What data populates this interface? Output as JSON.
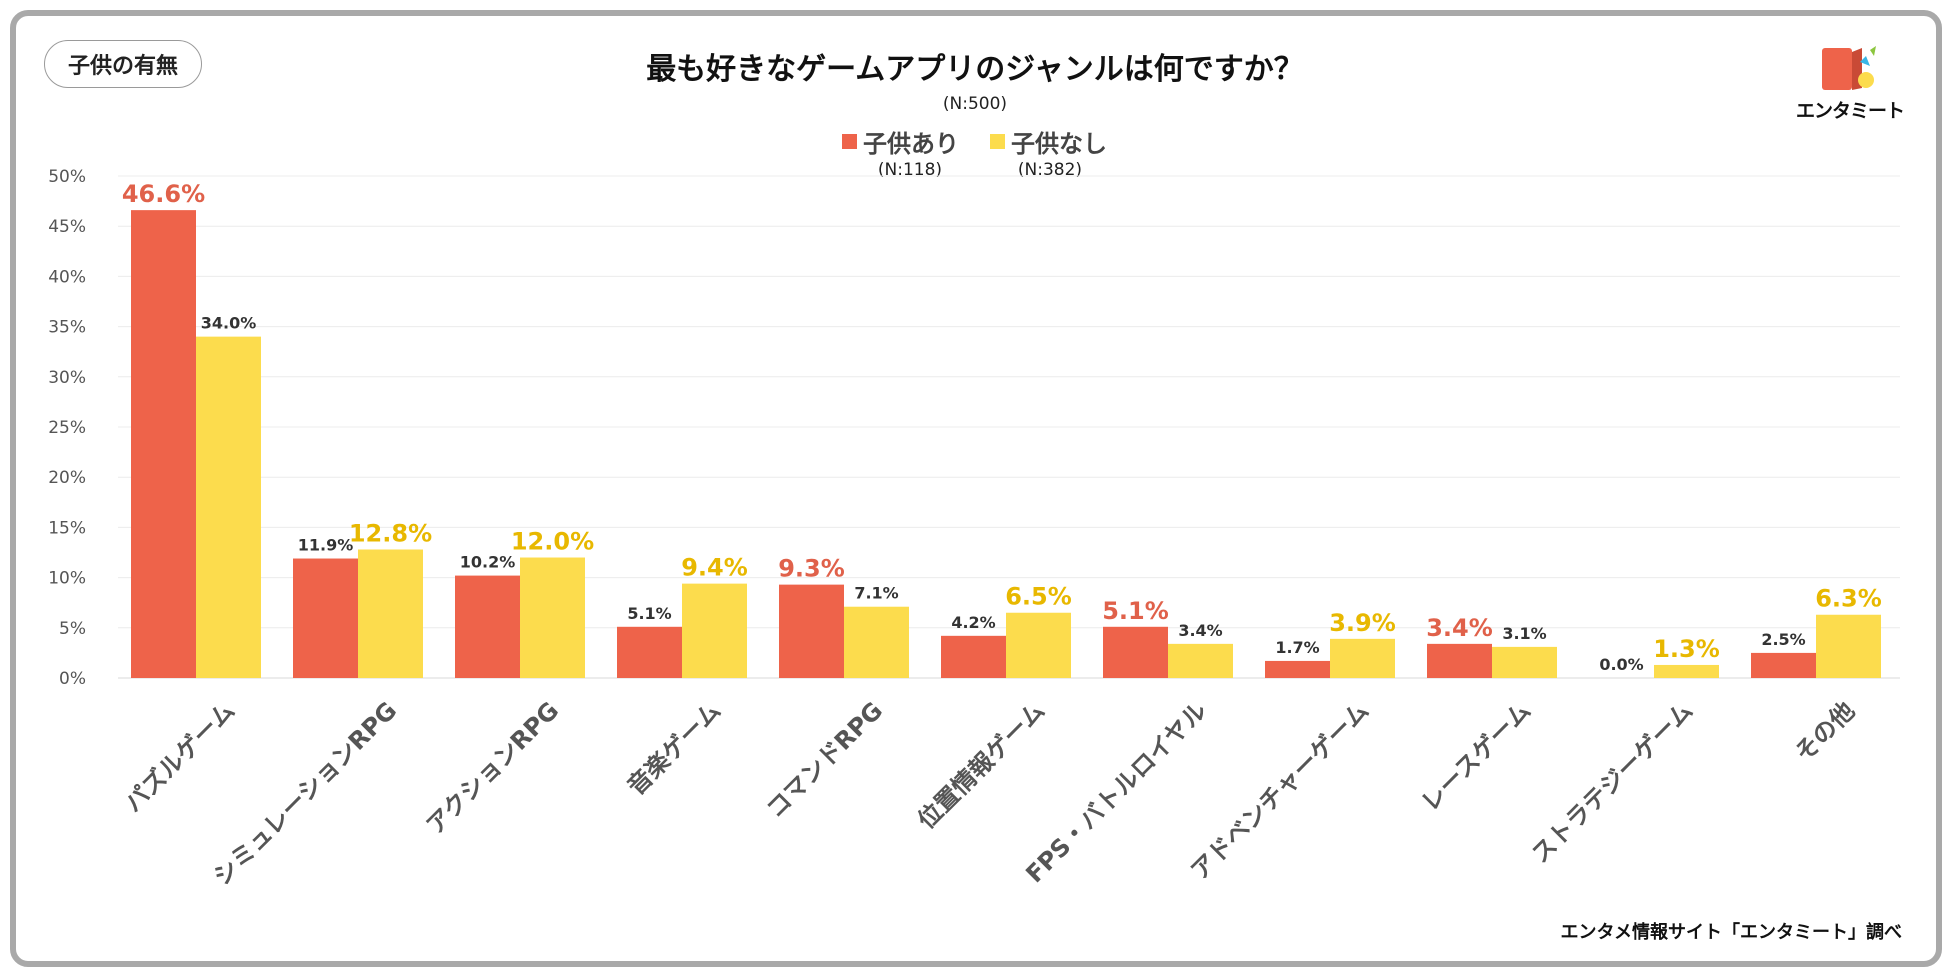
{
  "badge": "子供の有無",
  "logo_text": "エンタミート",
  "source": "エンタメ情報サイト「エンタミート」調べ",
  "colors": {
    "series_a": "#ee634a",
    "series_b": "#fcdc4d",
    "label_a_highlight": "#e0614a",
    "label_b_highlight": "#e8b800"
  },
  "legend": [
    {
      "name": "子供あり",
      "n": "(N:118)"
    },
    {
      "name": "子供なし",
      "n": "(N:382)"
    }
  ],
  "chart_data": {
    "type": "bar",
    "title": "最も好きなゲームアプリのジャンルは何ですか？",
    "subtitle": "(N:500)",
    "xlabel": "",
    "ylabel": "",
    "ylim": [
      0,
      50
    ],
    "yticks": [
      "0%",
      "5%",
      "10%",
      "15%",
      "20%",
      "25%",
      "30%",
      "35%",
      "40%",
      "45%",
      "50%"
    ],
    "categories": [
      "パズルゲーム",
      "シミュレーションRPG",
      "アクションRPG",
      "音楽ゲーム",
      "コマンドRPG",
      "位置情報ゲーム",
      "FPS・バトルロイヤル",
      "アドベンチャーゲーム",
      "レースゲーム",
      "ストラテジーゲーム",
      "その他"
    ],
    "series": [
      {
        "name": "子供あり",
        "values": [
          46.6,
          11.9,
          10.2,
          5.1,
          9.3,
          4.2,
          5.1,
          1.7,
          3.4,
          0.0,
          2.5
        ],
        "labels": [
          "46.6%",
          "11.9%",
          "10.2%",
          "5.1%",
          "9.3%",
          "4.2%",
          "5.1%",
          "1.7%",
          "3.4%",
          "0.0%",
          "2.5%"
        ]
      },
      {
        "name": "子供なし",
        "values": [
          34.0,
          12.8,
          12.0,
          9.4,
          7.1,
          6.5,
          3.4,
          3.9,
          3.1,
          1.3,
          6.3
        ],
        "labels": [
          "34.0%",
          "12.8%",
          "12.0%",
          "9.4%",
          "7.1%",
          "6.5%",
          "3.4%",
          "3.9%",
          "3.1%",
          "1.3%",
          "6.3%"
        ]
      }
    ],
    "grid": true,
    "legend_position": "top-center"
  }
}
